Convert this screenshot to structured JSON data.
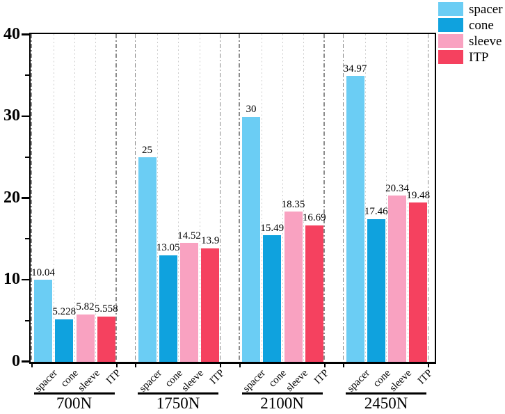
{
  "chart_data": {
    "type": "bar",
    "title": "",
    "xlabel": "",
    "ylabel": "",
    "ylim": [
      0,
      40
    ],
    "yticks_major": [
      0,
      10,
      20,
      30,
      40
    ],
    "yticks_minor": [
      5,
      15,
      25,
      35
    ],
    "categories": [
      "700N",
      "1750N",
      "2100N",
      "2450N"
    ],
    "series": [
      {
        "name": "spacer",
        "color": "#6BCDF4",
        "values": [
          10.04,
          25,
          30,
          34.97
        ],
        "value_labels": [
          "10.04",
          "25",
          "30",
          "34.97"
        ]
      },
      {
        "name": "cone",
        "color": "#0FA2DE",
        "values": [
          5.228,
          13.05,
          15.49,
          17.46
        ],
        "value_labels": [
          "5.228",
          "13.05",
          "15.49",
          "17.46"
        ]
      },
      {
        "name": "sleeve",
        "color": "#F9A2C1",
        "values": [
          5.82,
          14.52,
          18.35,
          20.34
        ],
        "value_labels": [
          "5.82",
          "14.52",
          "18.35",
          "20.34"
        ]
      },
      {
        "name": "ITP",
        "color": "#F5415F",
        "values": [
          5.558,
          13.9,
          16.69,
          19.48
        ],
        "value_labels": [
          "5.558",
          "13.9",
          "16.69",
          "19.48"
        ]
      }
    ],
    "legend": {
      "position": "top-right",
      "items": [
        "spacer",
        "cone",
        "sleeve",
        "ITP"
      ]
    },
    "grid": {
      "group_boundary_style": "dash-dot",
      "bar_separator_style": "dotted"
    },
    "colors": {
      "axis": "#000000",
      "group_boundary_grid": "#8c8c8c",
      "bar_separator_grid": "#cccccc",
      "background": "#ffffff"
    }
  }
}
